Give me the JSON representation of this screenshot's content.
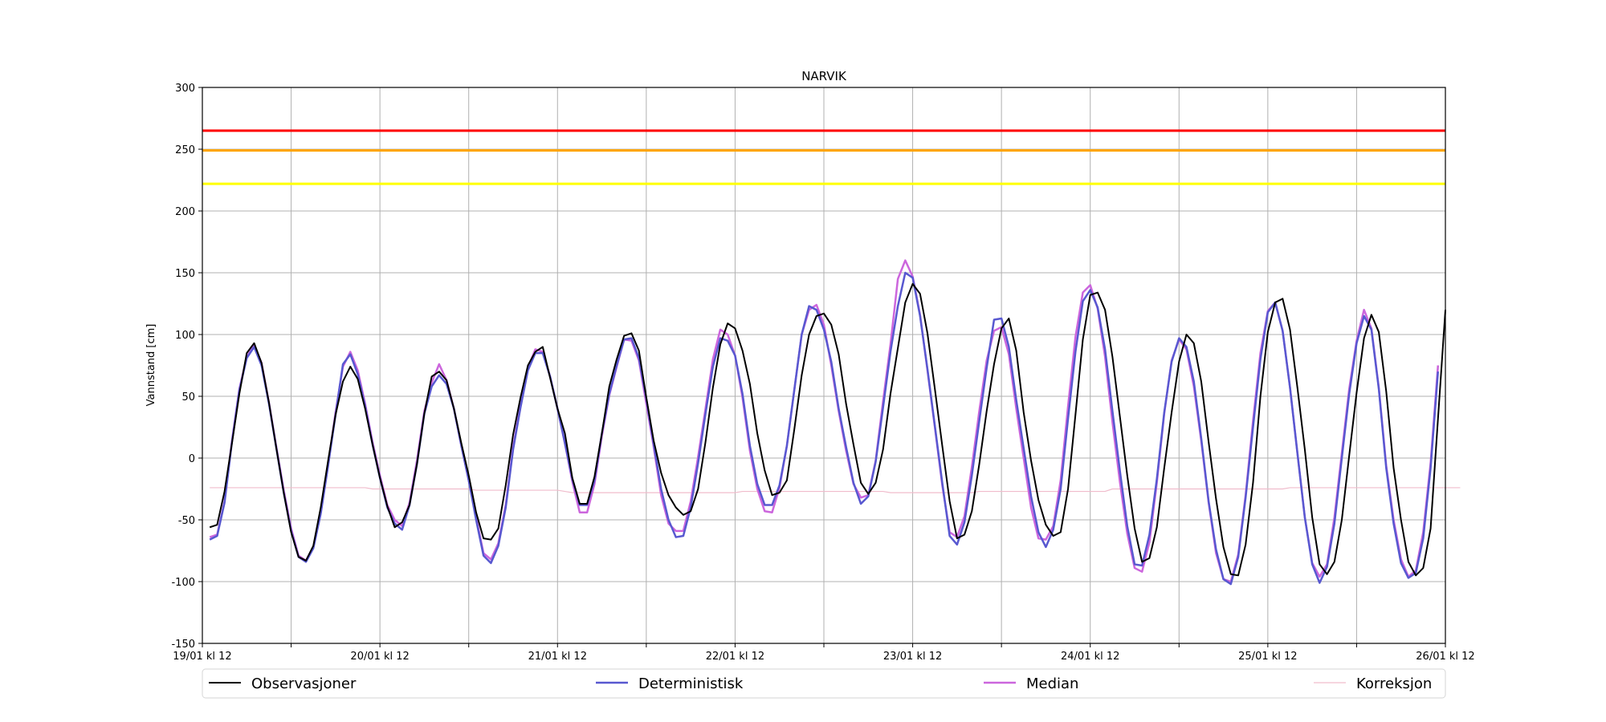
{
  "chart_data": {
    "type": "line",
    "title": "NARVIK",
    "xlabel": "",
    "ylabel": "Vannstand [cm]",
    "ylim": [
      -150,
      300
    ],
    "yticks": [
      -150,
      -100,
      -50,
      0,
      50,
      100,
      150,
      200,
      250,
      300
    ],
    "xlim": [
      "2024-01-19 12:00",
      "2024-01-26 12:00"
    ],
    "x_tick_labels": [
      "19/01 kl 12",
      "20/01 kl 12",
      "21/01 kl 12",
      "22/01 kl 12",
      "23/01 kl 12",
      "24/01 kl 12",
      "25/01 kl 12",
      "26/01 kl 12"
    ],
    "x_step": "1 hour",
    "grid": true,
    "legend_position": "bottom",
    "thresholds": [
      {
        "value": 265,
        "color": "#ff0000"
      },
      {
        "value": 249,
        "color": "#ffa500"
      },
      {
        "value": 222,
        "color": "#ffff00"
      }
    ],
    "x_tick_label_dates": [
      "2024-01-19 12:00",
      "2024-01-20 12:00",
      "2024-01-21 12:00",
      "2024-01-22 12:00",
      "2024-01-23 12:00",
      "2024-01-24 12:00",
      "2024-01-25 12:00",
      "2024-01-26 12:00"
    ],
    "series": [
      {
        "name": "Observasjoner",
        "color": "#000000",
        "x_start": "2024-01-19 13:00",
        "values": [
          -56,
          -54,
          -27,
          12,
          52,
          85,
          93,
          77,
          45,
          8,
          -28,
          -60,
          -80,
          -83,
          -71,
          -40,
          -2,
          35,
          62,
          74,
          64,
          40,
          11,
          -16,
          -39,
          -56,
          -52,
          -38,
          -5,
          36,
          66,
          70,
          63,
          40,
          12,
          -14,
          -44,
          -65,
          -66,
          -57,
          -22,
          19,
          49,
          75,
          86,
          90,
          65,
          40,
          20,
          -16,
          -37,
          -37,
          -15,
          20,
          58,
          80,
          99,
          101,
          87,
          49,
          14,
          -12,
          -30,
          -40,
          -46,
          -43,
          -25,
          13,
          57,
          92,
          109,
          105,
          87,
          60,
          20,
          -10,
          -30,
          -28,
          -18,
          23,
          67,
          100,
          115,
          117,
          108,
          84,
          44,
          11,
          -20,
          -29,
          -20,
          7,
          52,
          89,
          126,
          141,
          133,
          101,
          56,
          10,
          -35,
          -65,
          -62,
          -43,
          -5,
          38,
          76,
          105,
          113,
          87,
          37,
          -2,
          -34,
          -54,
          -63,
          -60,
          -25,
          35,
          96,
          132,
          134,
          120,
          82,
          34,
          -14,
          -57,
          -84,
          -81,
          -56,
          -8,
          37,
          78,
          100,
          93,
          62,
          13,
          -33,
          -72,
          -94,
          -95,
          -70,
          -20,
          50,
          102,
          126,
          129,
          104,
          57,
          7,
          -48,
          -86,
          -94,
          -84,
          -50,
          2,
          53,
          97,
          116,
          102,
          54,
          -8,
          -50,
          -84,
          -95,
          -89,
          -57,
          32,
          120
        ]
      },
      {
        "name": "Deterministisk",
        "color": "#5858d0",
        "x_start": "2024-01-19 13:00",
        "values": [
          -66,
          -63,
          -36,
          13,
          55,
          81,
          90,
          75,
          44,
          8,
          -28,
          -59,
          -80,
          -84,
          -73,
          -45,
          -6,
          35,
          76,
          84,
          68,
          42,
          11,
          -16,
          -40,
          -53,
          -58,
          -38,
          -5,
          36,
          58,
          67,
          60,
          40,
          10,
          -18,
          -50,
          -79,
          -85,
          -71,
          -40,
          7,
          41,
          71,
          85,
          85,
          66,
          40,
          12,
          -17,
          -38,
          -38,
          -18,
          20,
          52,
          75,
          96,
          97,
          81,
          48,
          11,
          -25,
          -50,
          -64,
          -63,
          -40,
          -4,
          36,
          74,
          97,
          95,
          83,
          52,
          10,
          -21,
          -38,
          -38,
          -22,
          10,
          55,
          100,
          123,
          120,
          104,
          78,
          40,
          9,
          -20,
          -37,
          -31,
          -3,
          41,
          86,
          123,
          150,
          146,
          115,
          72,
          26,
          -20,
          -63,
          -70,
          -52,
          -14,
          30,
          73,
          112,
          113,
          90,
          47,
          8,
          -31,
          -60,
          -72,
          -58,
          -25,
          32,
          86,
          127,
          136,
          122,
          88,
          38,
          -10,
          -55,
          -86,
          -87,
          -62,
          -17,
          37,
          78,
          97,
          90,
          62,
          16,
          -35,
          -74,
          -98,
          -102,
          -80,
          -32,
          25,
          80,
          118,
          126,
          103,
          57,
          4,
          -48,
          -86,
          -101,
          -88,
          -53,
          0,
          52,
          93,
          115,
          104,
          56,
          -8,
          -53,
          -85,
          -97,
          -93,
          -65,
          -8,
          70
        ]
      },
      {
        "name": "Median",
        "color": "#cc66dd",
        "x_start": "2024-01-19 13:00",
        "values": [
          -64,
          -62,
          -35,
          14,
          56,
          82,
          91,
          77,
          45,
          9,
          -26,
          -57,
          -79,
          -83,
          -72,
          -44,
          -5,
          37,
          74,
          86,
          71,
          44,
          13,
          -14,
          -38,
          -50,
          -55,
          -36,
          -2,
          38,
          61,
          76,
          63,
          40,
          10,
          -18,
          -48,
          -77,
          -82,
          -69,
          -38,
          9,
          43,
          73,
          88,
          86,
          66,
          40,
          12,
          -19,
          -44,
          -44,
          -21,
          18,
          51,
          74,
          96,
          95,
          79,
          44,
          9,
          -30,
          -53,
          -59,
          -59,
          -35,
          1,
          40,
          80,
          104,
          100,
          83,
          49,
          6,
          -25,
          -43,
          -44,
          -24,
          10,
          55,
          100,
          120,
          124,
          108,
          75,
          38,
          6,
          -21,
          -32,
          -30,
          -2,
          46,
          92,
          145,
          160,
          147,
          116,
          71,
          25,
          -22,
          -60,
          -64,
          -47,
          -7,
          38,
          79,
          103,
          106,
          84,
          40,
          0,
          -40,
          -65,
          -66,
          -55,
          -18,
          42,
          98,
          134,
          140,
          121,
          82,
          29,
          -19,
          -61,
          -89,
          -92,
          -68,
          -20,
          36,
          79,
          96,
          88,
          58,
          14,
          -36,
          -77,
          -98,
          -100,
          -78,
          -30,
          30,
          85,
          119,
          126,
          103,
          57,
          4,
          -48,
          -85,
          -96,
          -86,
          -48,
          4,
          56,
          95,
          120,
          105,
          57,
          -6,
          -50,
          -82,
          -96,
          -91,
          -60,
          -4,
          75
        ]
      },
      {
        "name": "Korreksjon",
        "color": "#f0bccc",
        "x_start": "2024-01-19 13:00",
        "values": [
          -24,
          -24,
          -24,
          -24,
          -24,
          -24,
          -24,
          -24,
          -24,
          -24,
          -24,
          -24,
          -24,
          -24,
          -24,
          -24,
          -24,
          -24,
          -24,
          -24,
          -24,
          -24,
          -25,
          -25,
          -25,
          -25,
          -25,
          -25,
          -25,
          -25,
          -25,
          -25,
          -25,
          -25,
          -25,
          -25,
          -26,
          -26,
          -26,
          -26,
          -26,
          -26,
          -26,
          -26,
          -26,
          -26,
          -26,
          -26,
          -27,
          -28,
          -28,
          -28,
          -28,
          -28,
          -28,
          -28,
          -28,
          -28,
          -28,
          -28,
          -28,
          -28,
          -28,
          -28,
          -28,
          -28,
          -28,
          -28,
          -28,
          -28,
          -28,
          -28,
          -27,
          -27,
          -27,
          -27,
          -27,
          -27,
          -27,
          -27,
          -27,
          -27,
          -27,
          -27,
          -27,
          -27,
          -27,
          -27,
          -27,
          -27,
          -27,
          -27,
          -28,
          -28,
          -28,
          -28,
          -28,
          -28,
          -28,
          -28,
          -28,
          -28,
          -28,
          -28,
          -27,
          -27,
          -27,
          -27,
          -27,
          -27,
          -27,
          -27,
          -27,
          -27,
          -27,
          -27,
          -27,
          -27,
          -27,
          -27,
          -27,
          -27,
          -25,
          -25,
          -25,
          -25,
          -25,
          -25,
          -25,
          -25,
          -25,
          -25,
          -25,
          -25,
          -25,
          -25,
          -25,
          -25,
          -25,
          -25,
          -25,
          -25,
          -25,
          -25,
          -25,
          -25,
          -24,
          -24,
          -24,
          -24,
          -24,
          -24,
          -24,
          -24,
          -24,
          -24,
          -24,
          -24,
          -24,
          -24,
          -24,
          -24,
          -24,
          -24,
          -24,
          -24,
          -24,
          -24,
          -24,
          -24
        ]
      }
    ]
  }
}
